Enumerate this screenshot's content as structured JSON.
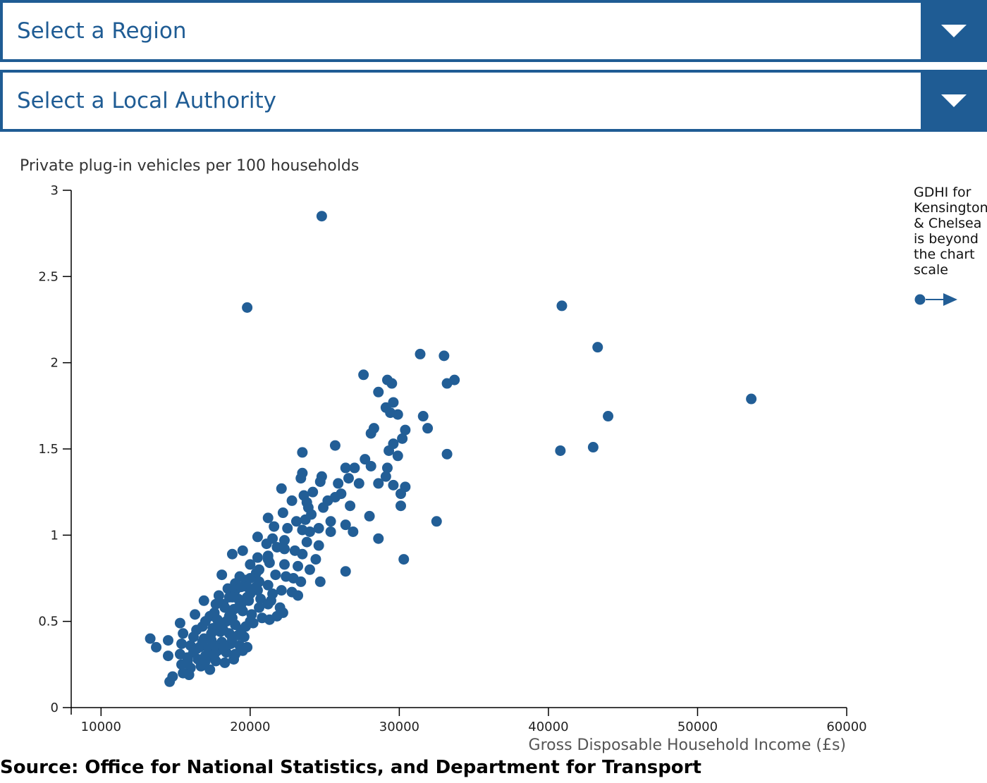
{
  "controls": {
    "region": {
      "label": "Select a Region"
    },
    "local_authority": {
      "label": "Select a Local Authority"
    }
  },
  "colors": {
    "accent": "#1f5c94",
    "point": "#225e96"
  },
  "icons": {
    "dropdown": "chevron-down-icon",
    "arrow": "arrow-right-icon"
  },
  "source": "Source: Office for National Statistics, and Department for Transport",
  "note": {
    "lines": [
      "GDHI for",
      "Kensington",
      "& Chelsea",
      "is beyond",
      "the chart",
      "scale"
    ]
  },
  "chart_data": {
    "type": "scatter",
    "title": "",
    "ylabel": "Private plug-in vehicles per 100 households",
    "xlabel": "Gross Disposable Household Income (£s)",
    "xlim": [
      8000,
      60000
    ],
    "ylim": [
      0,
      3
    ],
    "xticks": [
      10000,
      20000,
      30000,
      40000,
      50000,
      60000
    ],
    "yticks": [
      0,
      0.5,
      1,
      1.5,
      2,
      2.5,
      3
    ],
    "xtick_labels": [
      "10000",
      "20000",
      "30000",
      "40000",
      "50000",
      "60000"
    ],
    "ytick_labels": [
      "0",
      "0.5",
      "1",
      "1.5",
      "2",
      "2.5",
      "3"
    ],
    "grid": false,
    "series": [
      {
        "points": [
          [
            24800,
            2.85
          ],
          [
            19800,
            2.32
          ],
          [
            40900,
            2.33
          ],
          [
            43300,
            2.09
          ],
          [
            53600,
            1.79
          ],
          [
            44000,
            1.69
          ],
          [
            40800,
            1.49
          ],
          [
            43000,
            1.51
          ],
          [
            31400,
            2.05
          ],
          [
            33000,
            2.04
          ],
          [
            33200,
            1.88
          ],
          [
            33700,
            1.9
          ],
          [
            27600,
            1.93
          ],
          [
            29200,
            1.9
          ],
          [
            29500,
            1.88
          ],
          [
            28600,
            1.83
          ],
          [
            29600,
            1.77
          ],
          [
            29100,
            1.74
          ],
          [
            29400,
            1.71
          ],
          [
            29900,
            1.7
          ],
          [
            31600,
            1.69
          ],
          [
            31900,
            1.62
          ],
          [
            30400,
            1.61
          ],
          [
            28300,
            1.62
          ],
          [
            28100,
            1.59
          ],
          [
            30200,
            1.56
          ],
          [
            29600,
            1.53
          ],
          [
            29300,
            1.49
          ],
          [
            29900,
            1.46
          ],
          [
            33200,
            1.47
          ],
          [
            25700,
            1.52
          ],
          [
            23500,
            1.48
          ],
          [
            27700,
            1.44
          ],
          [
            28100,
            1.4
          ],
          [
            29200,
            1.39
          ],
          [
            26400,
            1.39
          ],
          [
            27000,
            1.39
          ],
          [
            23500,
            1.36
          ],
          [
            24800,
            1.34
          ],
          [
            29100,
            1.34
          ],
          [
            26600,
            1.33
          ],
          [
            24700,
            1.31
          ],
          [
            25900,
            1.3
          ],
          [
            27300,
            1.3
          ],
          [
            28600,
            1.3
          ],
          [
            29600,
            1.29
          ],
          [
            30400,
            1.28
          ],
          [
            22100,
            1.27
          ],
          [
            23400,
            1.33
          ],
          [
            24200,
            1.25
          ],
          [
            30100,
            1.24
          ],
          [
            23600,
            1.23
          ],
          [
            25200,
            1.2
          ],
          [
            26100,
            1.24
          ],
          [
            25700,
            1.22
          ],
          [
            22800,
            1.2
          ],
          [
            23800,
            1.19
          ],
          [
            24900,
            1.16
          ],
          [
            26700,
            1.17
          ],
          [
            30100,
            1.17
          ],
          [
            23900,
            1.16
          ],
          [
            22200,
            1.13
          ],
          [
            28000,
            1.11
          ],
          [
            21200,
            1.1
          ],
          [
            23700,
            1.09
          ],
          [
            24100,
            1.12
          ],
          [
            25400,
            1.08
          ],
          [
            26400,
            1.06
          ],
          [
            32500,
            1.08
          ],
          [
            21600,
            1.05
          ],
          [
            22500,
            1.04
          ],
          [
            23100,
            1.08
          ],
          [
            23500,
            1.03
          ],
          [
            24000,
            1.02
          ],
          [
            24600,
            1.04
          ],
          [
            25400,
            1.02
          ],
          [
            26900,
            1.02
          ],
          [
            20500,
            0.99
          ],
          [
            21500,
            0.98
          ],
          [
            22300,
            0.97
          ],
          [
            23800,
            0.96
          ],
          [
            24600,
            0.94
          ],
          [
            28600,
            0.98
          ],
          [
            19500,
            0.91
          ],
          [
            18800,
            0.89
          ],
          [
            21100,
            0.95
          ],
          [
            21800,
            0.93
          ],
          [
            22300,
            0.92
          ],
          [
            23000,
            0.91
          ],
          [
            23500,
            0.89
          ],
          [
            24400,
            0.86
          ],
          [
            30300,
            0.86
          ],
          [
            20500,
            0.87
          ],
          [
            21200,
            0.86
          ],
          [
            20000,
            0.83
          ],
          [
            21300,
            0.84
          ],
          [
            22300,
            0.83
          ],
          [
            23200,
            0.82
          ],
          [
            24000,
            0.8
          ],
          [
            26400,
            0.79
          ],
          [
            18100,
            0.77
          ],
          [
            19300,
            0.76
          ],
          [
            20400,
            0.78
          ],
          [
            21700,
            0.77
          ],
          [
            22400,
            0.76
          ],
          [
            22900,
            0.75
          ],
          [
            23400,
            0.73
          ],
          [
            24700,
            0.73
          ],
          [
            19000,
            0.72
          ],
          [
            19700,
            0.74
          ],
          [
            20600,
            0.73
          ],
          [
            21200,
            0.71
          ],
          [
            22100,
            0.68
          ],
          [
            22800,
            0.67
          ],
          [
            23200,
            0.65
          ],
          [
            18500,
            0.69
          ],
          [
            19000,
            0.68
          ],
          [
            19800,
            0.7
          ],
          [
            20500,
            0.68
          ],
          [
            21500,
            0.66
          ],
          [
            17900,
            0.65
          ],
          [
            18600,
            0.64
          ],
          [
            19200,
            0.63
          ],
          [
            19900,
            0.62
          ],
          [
            20700,
            0.63
          ],
          [
            21200,
            0.6
          ],
          [
            22000,
            0.58
          ],
          [
            22200,
            0.55
          ],
          [
            16900,
            0.62
          ],
          [
            17700,
            0.6
          ],
          [
            18300,
            0.58
          ],
          [
            18900,
            0.57
          ],
          [
            19500,
            0.56
          ],
          [
            20100,
            0.54
          ],
          [
            20800,
            0.52
          ],
          [
            21300,
            0.51
          ],
          [
            21800,
            0.53
          ],
          [
            16300,
            0.54
          ],
          [
            17300,
            0.53
          ],
          [
            17800,
            0.51
          ],
          [
            18400,
            0.5
          ],
          [
            19000,
            0.48
          ],
          [
            19700,
            0.47
          ],
          [
            20200,
            0.49
          ],
          [
            15300,
            0.49
          ],
          [
            16800,
            0.47
          ],
          [
            17500,
            0.46
          ],
          [
            18000,
            0.44
          ],
          [
            18600,
            0.43
          ],
          [
            19200,
            0.42
          ],
          [
            19600,
            0.41
          ],
          [
            15500,
            0.43
          ],
          [
            16200,
            0.41
          ],
          [
            16900,
            0.4
          ],
          [
            17400,
            0.39
          ],
          [
            18100,
            0.38
          ],
          [
            18700,
            0.37
          ],
          [
            19300,
            0.36
          ],
          [
            19800,
            0.35
          ],
          [
            13300,
            0.4
          ],
          [
            14500,
            0.39
          ],
          [
            15400,
            0.37
          ],
          [
            16000,
            0.36
          ],
          [
            16600,
            0.35
          ],
          [
            17200,
            0.34
          ],
          [
            17800,
            0.33
          ],
          [
            18400,
            0.32
          ],
          [
            19000,
            0.31
          ],
          [
            19500,
            0.33
          ],
          [
            13700,
            0.35
          ],
          [
            14500,
            0.3
          ],
          [
            15300,
            0.31
          ],
          [
            15800,
            0.29
          ],
          [
            16500,
            0.28
          ],
          [
            17100,
            0.29
          ],
          [
            17700,
            0.27
          ],
          [
            18300,
            0.26
          ],
          [
            18900,
            0.28
          ],
          [
            15400,
            0.25
          ],
          [
            16000,
            0.23
          ],
          [
            16700,
            0.24
          ],
          [
            17300,
            0.22
          ],
          [
            15500,
            0.2
          ],
          [
            15900,
            0.19
          ],
          [
            14800,
            0.18
          ],
          [
            14600,
            0.15
          ],
          [
            17000,
            0.3
          ],
          [
            17600,
            0.36
          ],
          [
            18200,
            0.45
          ],
          [
            18800,
            0.52
          ],
          [
            19400,
            0.6
          ],
          [
            20000,
            0.66
          ],
          [
            16400,
            0.45
          ],
          [
            17000,
            0.5
          ],
          [
            17600,
            0.55
          ],
          [
            18200,
            0.6
          ],
          [
            18800,
            0.64
          ],
          [
            19400,
            0.7
          ],
          [
            20000,
            0.75
          ],
          [
            20600,
            0.8
          ],
          [
            21200,
            0.88
          ],
          [
            16200,
            0.32
          ],
          [
            16800,
            0.38
          ],
          [
            17400,
            0.43
          ],
          [
            18000,
            0.48
          ],
          [
            18600,
            0.53
          ],
          [
            19200,
            0.58
          ],
          [
            19800,
            0.64
          ],
          [
            20400,
            0.7
          ],
          [
            15800,
            0.27
          ],
          [
            16400,
            0.34
          ],
          [
            17000,
            0.27
          ],
          [
            17600,
            0.31
          ],
          [
            18200,
            0.35
          ],
          [
            18800,
            0.4
          ],
          [
            19400,
            0.45
          ],
          [
            20000,
            0.5
          ],
          [
            20600,
            0.58
          ],
          [
            21400,
            0.62
          ]
        ]
      }
    ]
  }
}
